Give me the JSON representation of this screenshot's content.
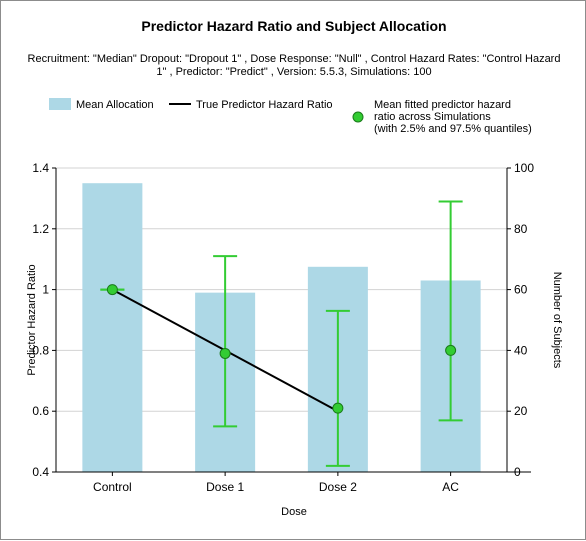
{
  "chart_data": {
    "type": "bar",
    "title": "Predictor Hazard Ratio and Subject Allocation",
    "subtitle_lines": [
      "Recruitment: \"Median\" Dropout: \"Dropout 1\" , Dose Response: \"Null\" , Control Hazard Rates: \"Control Hazard",
      "1\" , Predictor: \"Predict\" , Version: 5.5.3, Simulations: 100"
    ],
    "xlabel": "Dose",
    "ylabel_left": "Predictor Hazard Ratio",
    "ylabel_right": "Number of Subjects",
    "categories": [
      "Control",
      "Dose 1",
      "Dose 2",
      "AC"
    ],
    "left_axis": {
      "min": 0.4,
      "max": 1.4,
      "ticks": [
        "0.4",
        "0.6",
        "0.8",
        "1",
        "1.2",
        "1.4"
      ]
    },
    "right_axis": {
      "min": 0,
      "max": 100,
      "ticks": [
        "0",
        "20",
        "40",
        "60",
        "80",
        "100"
      ]
    },
    "grid": true,
    "legend_placement": "top",
    "legend": {
      "bar_label": "Mean Allocation",
      "line_label": "True Predictor Hazard Ratio",
      "marker_label_lines": [
        "Mean fitted predictor hazard",
        "ratio across Simulations",
        "(with 2.5% and 97.5% quantiles)"
      ]
    },
    "mean_allocation": [
      95,
      59,
      67.5,
      63
    ],
    "true_hazard_ratio": [
      1.0,
      0.8,
      0.6
    ],
    "fitted_hazard_ratio": [
      {
        "mean": 1.0,
        "low": 1.0,
        "high": 1.0
      },
      {
        "mean": 0.79,
        "low": 0.55,
        "high": 1.11
      },
      {
        "mean": 0.61,
        "low": 0.42,
        "high": 0.93
      },
      {
        "mean": 0.8,
        "low": 0.57,
        "high": 1.29
      }
    ],
    "colors": {
      "bar": "#add8e6",
      "line": "#000000",
      "marker_fill": "#33cc33",
      "marker_stroke": "#1a7a1a",
      "errorbar": "#33cc33",
      "grid": "#d3d3d3"
    }
  }
}
